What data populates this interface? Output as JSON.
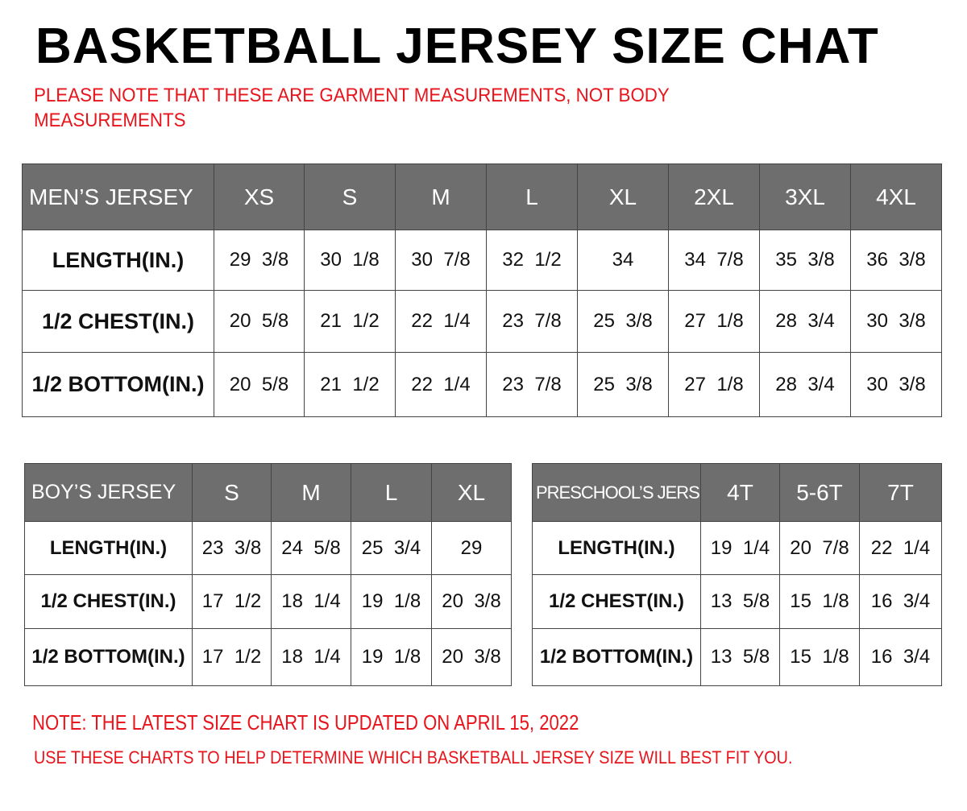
{
  "title": "BASKETBALL JERSEY SIZE CHAT",
  "top_note": "PLEASE NOTE THAT THESE ARE GARMENT MEASUREMENTS, NOT BODY MEASUREMENTS",
  "colors": {
    "header_bg": "#6e6e6e",
    "note_red": "#e8141b"
  },
  "tables": {
    "men": {
      "header": "MEN’S JERSEY",
      "sizes": [
        "XS",
        "S",
        "M",
        "L",
        "XL",
        "2XL",
        "3XL",
        "4XL"
      ],
      "rows": [
        {
          "label": "LENGTH(IN.)",
          "values": [
            "29  3/8",
            "30  1/8",
            "30  7/8",
            "32  1/2",
            "34",
            "34  7/8",
            "35  3/8",
            "36  3/8"
          ]
        },
        {
          "label": "1/2  CHEST(IN.)",
          "values": [
            "20  5/8",
            "21  1/2",
            "22  1/4",
            "23  7/8",
            "25  3/8",
            "27  1/8",
            "28  3/4",
            "30  3/8"
          ]
        },
        {
          "label": "1/2  BOTTOM(IN.)",
          "values": [
            "20  5/8",
            "21  1/2",
            "22  1/4",
            "23  7/8",
            "25  3/8",
            "27  1/8",
            "28  3/4",
            "30  3/8"
          ]
        }
      ]
    },
    "boy": {
      "header": "BOY’S JERSEY",
      "sizes": [
        "S",
        "M",
        "L",
        "XL"
      ],
      "rows": [
        {
          "label": "LENGTH(IN.)",
          "values": [
            "23  3/8",
            "24  5/8",
            "25  3/4",
            "29"
          ]
        },
        {
          "label": "1/2  CHEST(IN.)",
          "values": [
            "17  1/2",
            "18  1/4",
            "19  1/8",
            "20  3/8"
          ]
        },
        {
          "label": "1/2  BOTTOM(IN.)",
          "values": [
            "17  1/2",
            "18  1/4",
            "19  1/8",
            "20  3/8"
          ]
        }
      ]
    },
    "pre": {
      "header": "PRESCHOOL’S JERSEY",
      "sizes": [
        "4T",
        "5-6T",
        "7T"
      ],
      "rows": [
        {
          "label": "LENGTH(IN.)",
          "values": [
            "19  1/4",
            "20  7/8",
            "22  1/4"
          ]
        },
        {
          "label": "1/2  CHEST(IN.)",
          "values": [
            "13  5/8",
            "15  1/8",
            "16  3/4"
          ]
        },
        {
          "label": "1/2  BOTTOM(IN.)",
          "values": [
            "13  5/8",
            "15  1/8",
            "16  3/4"
          ]
        }
      ]
    }
  },
  "bottom_notes": [
    "NOTE: THE LATEST SIZE CHART IS UPDATED ON APRIL 15, 2022",
    "USE THESE CHARTS TO HELP DETERMINE WHICH  BASKETBALL JERSEY  SIZE WILL BEST FIT YOU."
  ]
}
